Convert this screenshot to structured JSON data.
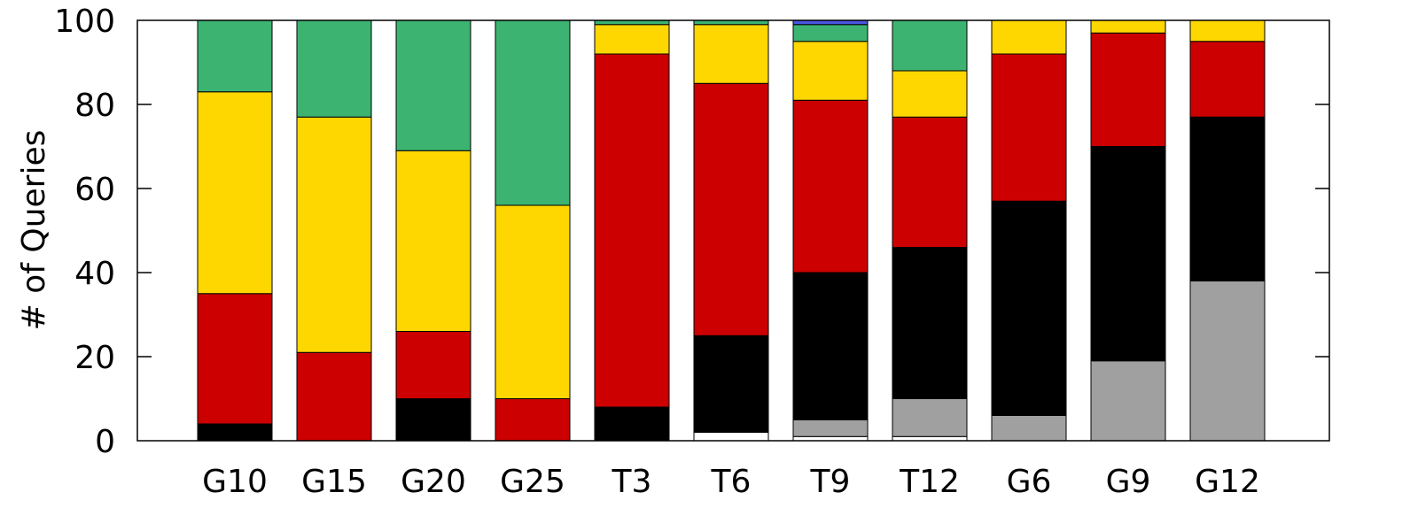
{
  "chart_data": {
    "type": "bar",
    "stacked": true,
    "title": "",
    "xlabel": "",
    "ylabel": "# of Queries",
    "ylim": [
      0,
      100
    ],
    "yticks": [
      0,
      20,
      40,
      60,
      80,
      100
    ],
    "grid": false,
    "legend": "none",
    "categories": [
      "G10",
      "G15",
      "G20",
      "G25",
      "T3",
      "T6",
      "T9",
      "T12",
      "G6",
      "G9",
      "G12"
    ],
    "series": [
      {
        "color": "#ffffff",
        "values": [
          0,
          0,
          0,
          0,
          0,
          2,
          1,
          1,
          0,
          0,
          0
        ]
      },
      {
        "color": "#a0a0a0",
        "values": [
          0,
          0,
          0,
          0,
          0,
          0,
          4,
          9,
          6,
          19,
          38
        ]
      },
      {
        "color": "#000000",
        "values": [
          4,
          0,
          10,
          0,
          8,
          23,
          35,
          36,
          51,
          51,
          39
        ]
      },
      {
        "color": "#cc0000",
        "values": [
          31,
          21,
          16,
          10,
          84,
          60,
          41,
          31,
          35,
          27,
          18
        ]
      },
      {
        "color": "#ffd700",
        "values": [
          48,
          56,
          43,
          46,
          7,
          14,
          14,
          11,
          8,
          3,
          5
        ]
      },
      {
        "color": "#3cb371",
        "values": [
          17,
          23,
          31,
          44,
          1,
          1,
          4,
          12,
          0,
          0,
          0
        ]
      },
      {
        "color": "#4a55e0",
        "values": [
          0,
          0,
          0,
          0,
          0,
          0,
          1,
          0,
          0,
          0,
          0
        ]
      }
    ]
  }
}
